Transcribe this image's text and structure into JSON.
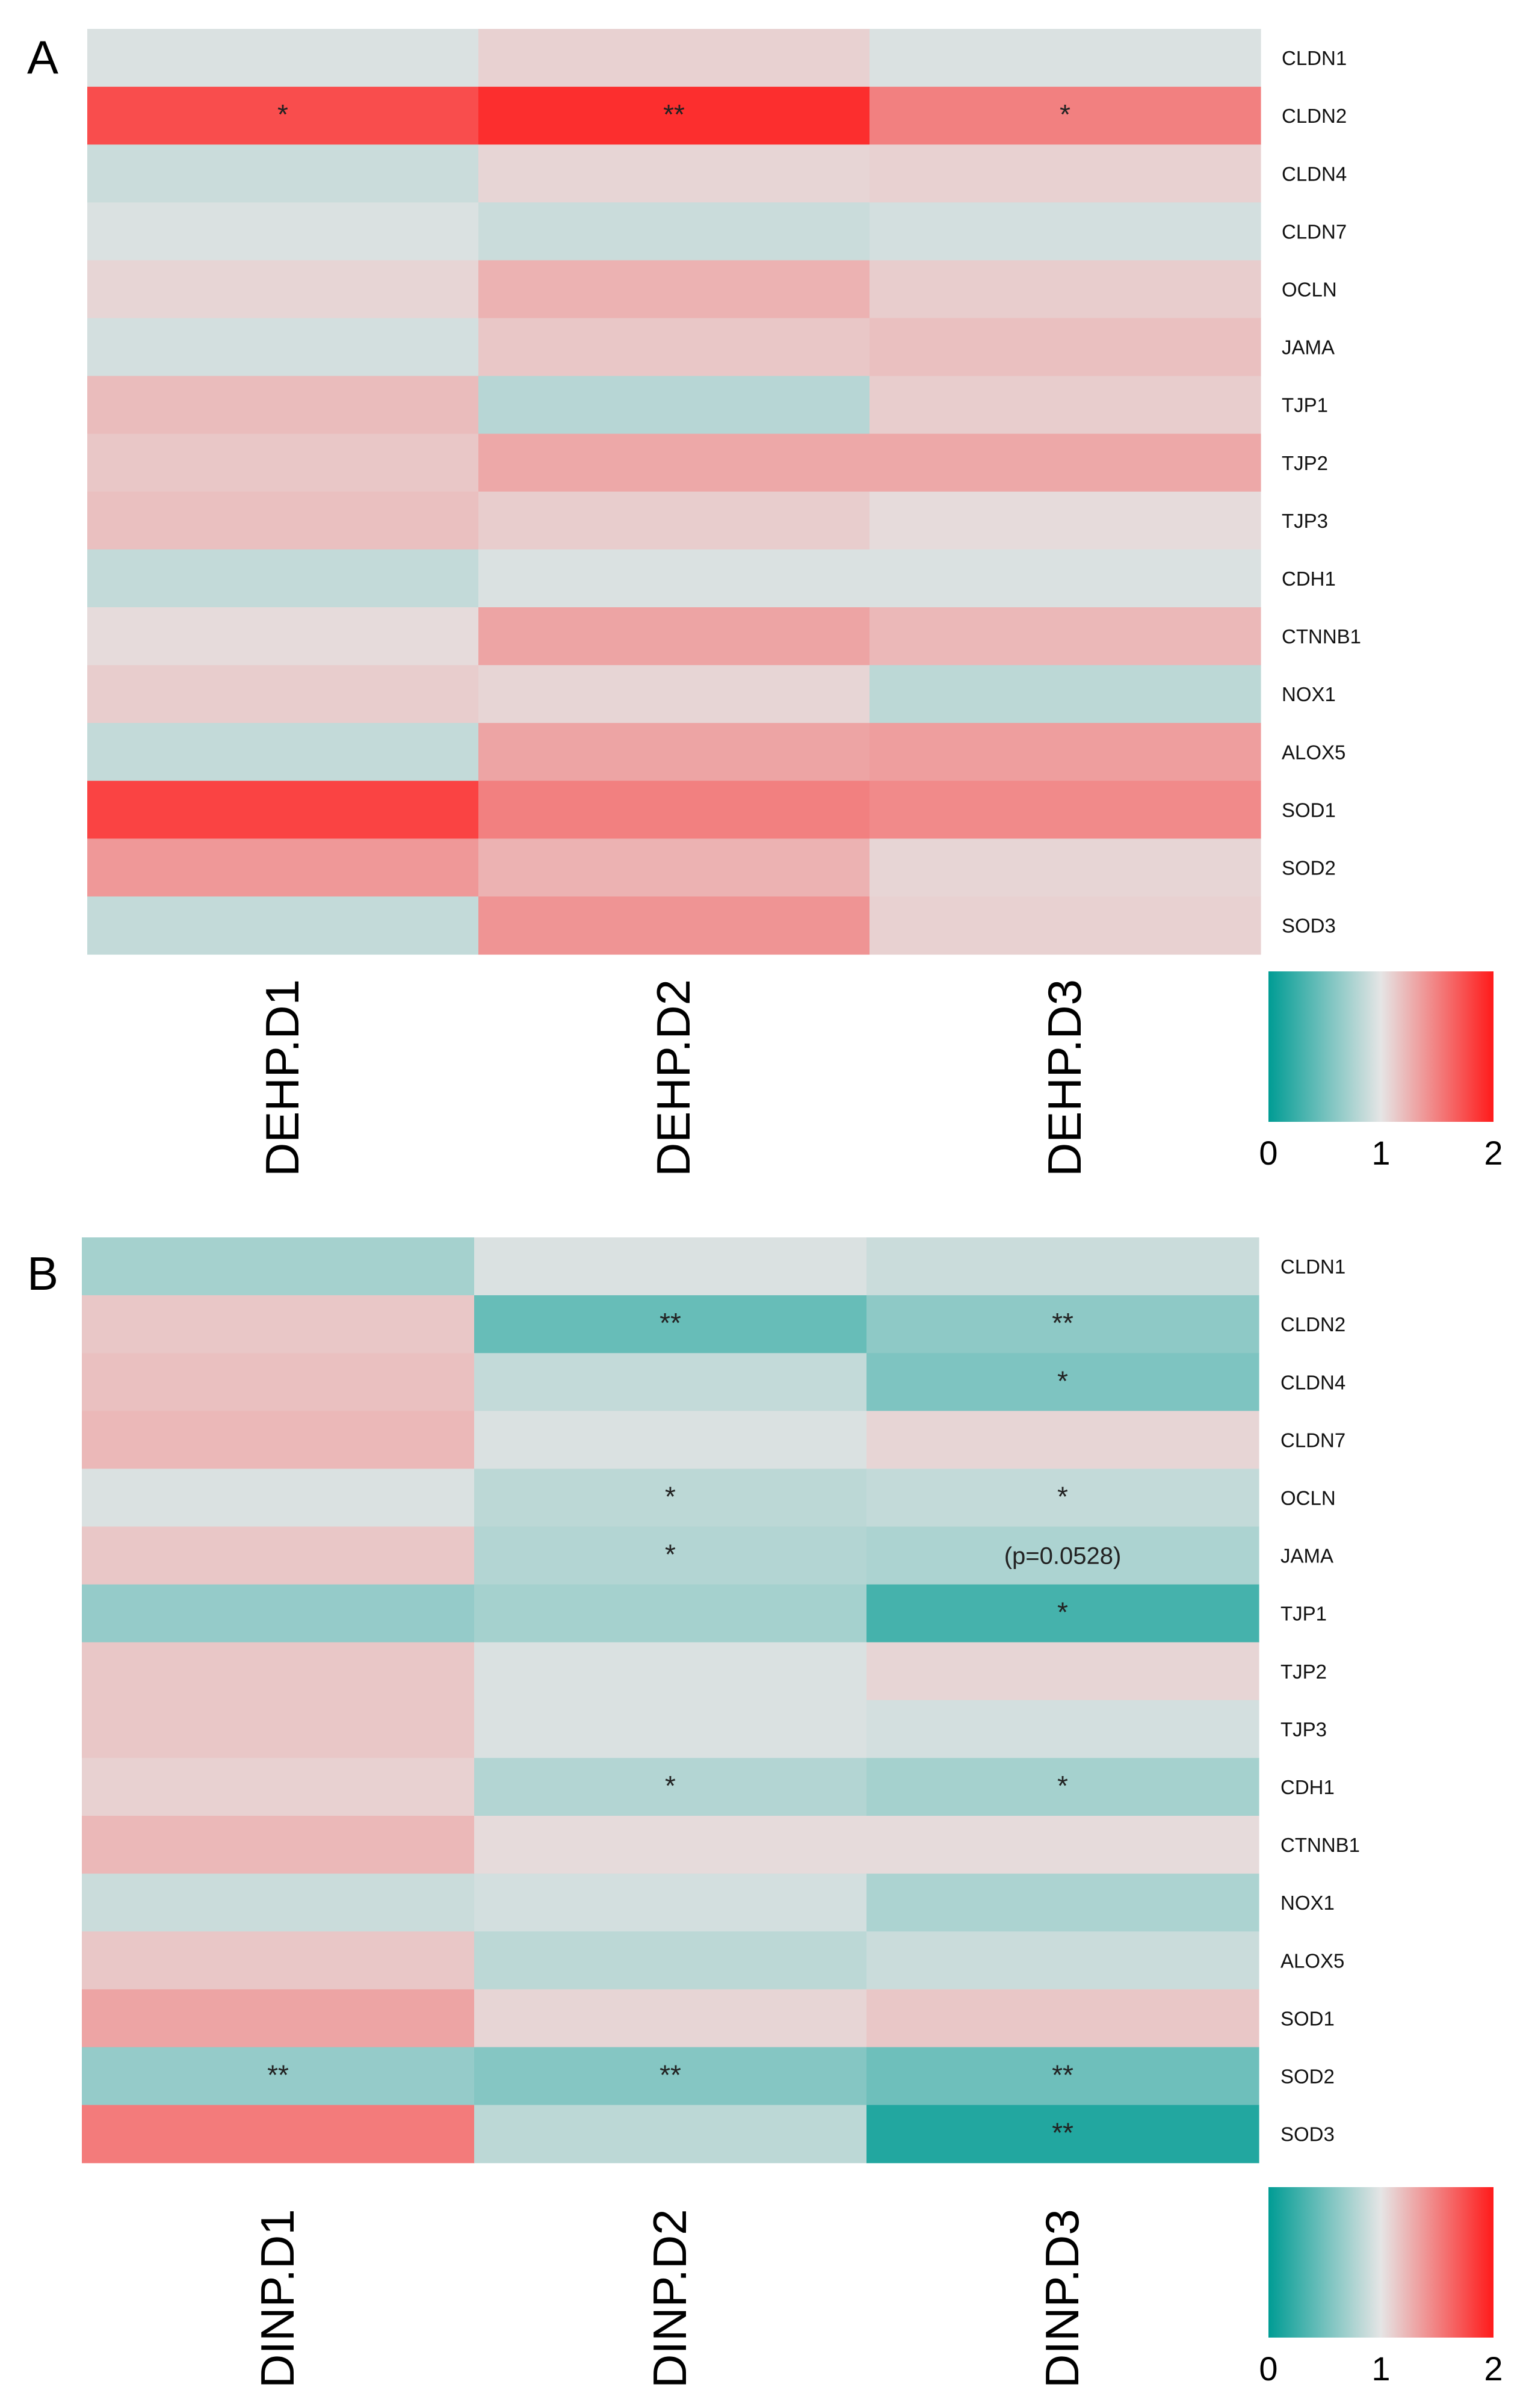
{
  "chart_data": [
    {
      "panel": "A",
      "type": "heatmap",
      "columns": [
        "DEHP.D1",
        "DEHP.D2",
        "DEHP.D3"
      ],
      "rows": [
        "CLDN1",
        "CLDN2",
        "CLDN4",
        "CLDN7",
        "OCLN",
        "JAMA",
        "TJP1",
        "TJP2",
        "TJP3",
        "CDH1",
        "CTNNB1",
        "NOX1",
        "ALOX5",
        "SOD1",
        "SOD2",
        "SOD3"
      ],
      "values": [
        [
          0.95,
          1.1,
          0.95
        ],
        [
          1.75,
          1.9,
          1.5
        ],
        [
          0.88,
          1.08,
          1.1
        ],
        [
          0.95,
          0.88,
          0.92
        ],
        [
          1.08,
          1.25,
          1.12
        ],
        [
          0.92,
          1.15,
          1.18
        ],
        [
          1.2,
          0.8,
          1.12
        ],
        [
          1.15,
          1.3,
          1.3
        ],
        [
          1.18,
          1.12,
          1.05
        ],
        [
          0.85,
          0.95,
          0.95
        ],
        [
          1.05,
          1.32,
          1.22
        ],
        [
          1.12,
          1.08,
          0.82
        ],
        [
          0.85,
          1.32,
          1.35
        ],
        [
          1.8,
          1.5,
          1.45
        ],
        [
          1.38,
          1.25,
          1.08
        ],
        [
          0.85,
          1.4,
          1.1
        ]
      ],
      "annotations": [
        {
          "row": "CLDN2",
          "col": "DEHP.D1",
          "text": "*"
        },
        {
          "row": "CLDN2",
          "col": "DEHP.D2",
          "text": "**"
        },
        {
          "row": "CLDN2",
          "col": "DEHP.D3",
          "text": "*"
        }
      ],
      "colorscale": {
        "min": 0,
        "mid": 1,
        "max": 2,
        "low_color": "#009c94",
        "mid_color": "#e5e5e5",
        "high_color": "#ff1a1a",
        "ticks": [
          "0",
          "1",
          "2"
        ]
      }
    },
    {
      "panel": "B",
      "type": "heatmap",
      "columns": [
        "DINP.D1",
        "DINP.D2",
        "DINP.D3"
      ],
      "rows": [
        "CLDN1",
        "CLDN2",
        "CLDN4",
        "CLDN7",
        "OCLN",
        "JAMA",
        "TJP1",
        "TJP2",
        "TJP3",
        "CDH1",
        "CTNNB1",
        "NOX1",
        "ALOX5",
        "SOD1",
        "SOD2",
        "SOD3"
      ],
      "values": [
        [
          0.72,
          0.95,
          0.88
        ],
        [
          1.15,
          0.45,
          0.62
        ],
        [
          1.18,
          0.85,
          0.55
        ],
        [
          1.22,
          0.95,
          1.08
        ],
        [
          0.95,
          0.82,
          0.85
        ],
        [
          1.15,
          0.78,
          0.75
        ],
        [
          0.65,
          0.72,
          0.3
        ],
        [
          1.15,
          0.95,
          1.08
        ],
        [
          1.15,
          0.95,
          0.92
        ],
        [
          1.1,
          0.78,
          0.72
        ],
        [
          1.22,
          1.05,
          1.05
        ],
        [
          0.88,
          0.92,
          0.75
        ],
        [
          1.15,
          0.82,
          0.88
        ],
        [
          1.32,
          1.08,
          1.15
        ],
        [
          0.65,
          0.58,
          0.48
        ],
        [
          1.52,
          0.82,
          0.15
        ]
      ],
      "annotations": [
        {
          "row": "CLDN2",
          "col": "DINP.D2",
          "text": "**"
        },
        {
          "row": "CLDN2",
          "col": "DINP.D3",
          "text": "**"
        },
        {
          "row": "CLDN4",
          "col": "DINP.D3",
          "text": "*"
        },
        {
          "row": "OCLN",
          "col": "DINP.D2",
          "text": "*"
        },
        {
          "row": "OCLN",
          "col": "DINP.D3",
          "text": "*"
        },
        {
          "row": "JAMA",
          "col": "DINP.D2",
          "text": "*"
        },
        {
          "row": "JAMA",
          "col": "DINP.D3",
          "text": "(p=0.0528)"
        },
        {
          "row": "TJP1",
          "col": "DINP.D3",
          "text": "*"
        },
        {
          "row": "CDH1",
          "col": "DINP.D2",
          "text": "*"
        },
        {
          "row": "CDH1",
          "col": "DINP.D3",
          "text": "*"
        },
        {
          "row": "SOD2",
          "col": "DINP.D1",
          "text": "**"
        },
        {
          "row": "SOD2",
          "col": "DINP.D2",
          "text": "**"
        },
        {
          "row": "SOD2",
          "col": "DINP.D3",
          "text": "**"
        },
        {
          "row": "SOD3",
          "col": "DINP.D3",
          "text": "**"
        }
      ],
      "colorscale": {
        "min": 0,
        "mid": 1,
        "max": 2,
        "low_color": "#009c94",
        "mid_color": "#e5e5e5",
        "high_color": "#ff1a1a",
        "ticks": [
          "0",
          "1",
          "2"
        ]
      }
    }
  ]
}
